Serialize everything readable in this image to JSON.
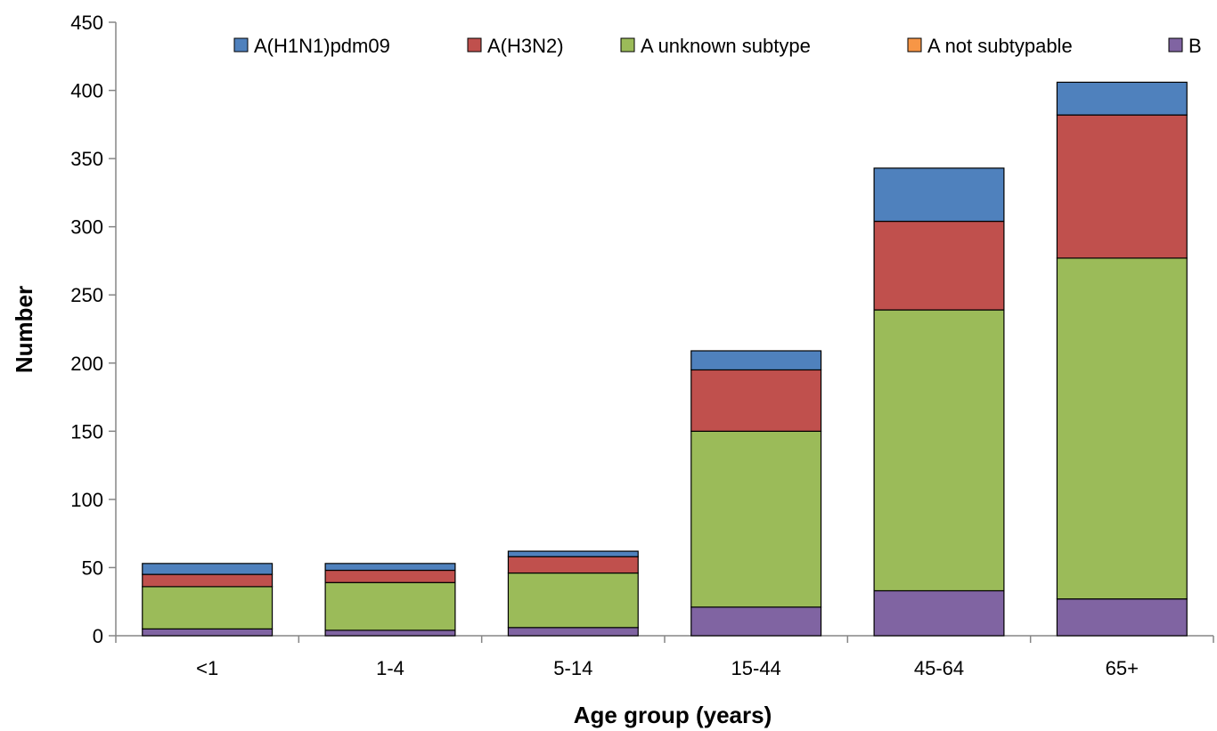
{
  "chart_data": {
    "type": "bar",
    "stacked": true,
    "title": "",
    "xlabel": "Age group (years)",
    "ylabel": "Number",
    "ylim": [
      0,
      450
    ],
    "yticks": [
      0,
      50,
      100,
      150,
      200,
      250,
      300,
      350,
      400,
      450
    ],
    "grid": false,
    "legend_position": "top-right",
    "categories": [
      "<1",
      "1-4",
      "5-14",
      "15-44",
      "45-64",
      "65+"
    ],
    "series": [
      {
        "name": "B",
        "color": "#8064a2",
        "values": [
          5,
          4,
          6,
          21,
          33,
          27
        ]
      },
      {
        "name": "A not subtypable",
        "color": "#f79646",
        "values": [
          0,
          0,
          0,
          0,
          0,
          0
        ]
      },
      {
        "name": "A unknown subtype",
        "color": "#9bbb59",
        "values": [
          31,
          35,
          40,
          129,
          206,
          250
        ]
      },
      {
        "name": "A(H3N2)",
        "color": "#c0504d",
        "values": [
          9,
          9,
          12,
          45,
          65,
          105
        ]
      },
      {
        "name": "A(H1N1)pdm09",
        "color": "#4f81bd",
        "values": [
          8,
          5,
          4,
          14,
          39,
          24
        ]
      }
    ],
    "legend_order": [
      "A(H1N1)pdm09",
      "A(H3N2)",
      "A unknown subtype",
      "A not subtypable",
      "B"
    ]
  }
}
